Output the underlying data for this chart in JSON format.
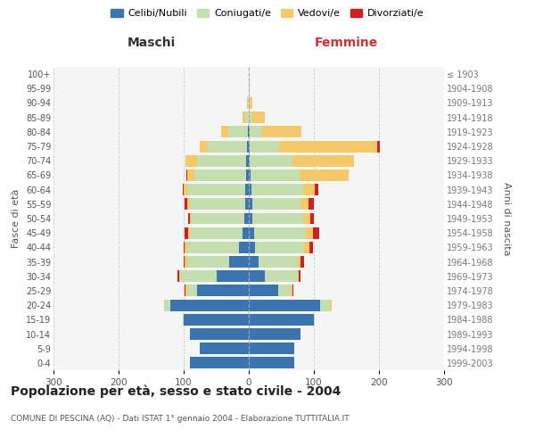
{
  "age_groups": [
    "0-4",
    "5-9",
    "10-14",
    "15-19",
    "20-24",
    "25-29",
    "30-34",
    "35-39",
    "40-44",
    "45-49",
    "50-54",
    "55-59",
    "60-64",
    "65-69",
    "70-74",
    "75-79",
    "80-84",
    "85-89",
    "90-94",
    "95-99",
    "100+"
  ],
  "birth_years": [
    "1999-2003",
    "1994-1998",
    "1989-1993",
    "1984-1988",
    "1979-1983",
    "1974-1978",
    "1969-1973",
    "1964-1968",
    "1959-1963",
    "1954-1958",
    "1949-1953",
    "1944-1948",
    "1939-1943",
    "1934-1938",
    "1929-1933",
    "1924-1928",
    "1919-1923",
    "1914-1918",
    "1909-1913",
    "1904-1908",
    "≤ 1903"
  ],
  "maschi": {
    "celibi": [
      90,
      75,
      90,
      100,
      120,
      80,
      50,
      30,
      15,
      10,
      7,
      6,
      5,
      4,
      4,
      3,
      2,
      0,
      0,
      0,
      0
    ],
    "coniugati": [
      0,
      0,
      0,
      2,
      10,
      15,
      55,
      65,
      80,
      80,
      80,
      85,
      90,
      80,
      75,
      60,
      30,
      5,
      2,
      0,
      0
    ],
    "vedovi": [
      0,
      0,
      0,
      0,
      0,
      2,
      2,
      3,
      3,
      3,
      3,
      3,
      5,
      10,
      18,
      12,
      10,
      5,
      1,
      0,
      0
    ],
    "divorziati": [
      0,
      0,
      0,
      0,
      0,
      1,
      2,
      2,
      2,
      5,
      3,
      5,
      2,
      2,
      0,
      0,
      0,
      0,
      0,
      0,
      0
    ]
  },
  "femmine": {
    "nubili": [
      70,
      70,
      80,
      100,
      110,
      45,
      25,
      15,
      10,
      8,
      5,
      5,
      4,
      3,
      2,
      2,
      1,
      0,
      0,
      0,
      0
    ],
    "coniugate": [
      0,
      0,
      0,
      2,
      15,
      20,
      50,
      60,
      75,
      80,
      80,
      75,
      80,
      75,
      65,
      45,
      20,
      4,
      1,
      0,
      0
    ],
    "vedove": [
      0,
      0,
      0,
      0,
      2,
      2,
      2,
      5,
      8,
      10,
      10,
      12,
      18,
      75,
      95,
      150,
      60,
      20,
      5,
      1,
      0
    ],
    "divorziate": [
      0,
      0,
      0,
      0,
      0,
      1,
      3,
      5,
      5,
      10,
      5,
      8,
      5,
      0,
      0,
      5,
      0,
      0,
      0,
      0,
      0
    ]
  },
  "xlim": 300,
  "colors": {
    "celibi": "#3A75B0",
    "coniugati": "#C5DEB0",
    "vedovi": "#F5C96A",
    "divorziati": "#CC2222"
  },
  "title": "Popolazione per età, sesso e stato civile - 2004",
  "subtitle": "COMUNE DI PESCINA (AQ) - Dati ISTAT 1° gennaio 2004 - Elaborazione TUTTITALIA.IT",
  "xlabel_left": "Maschi",
  "xlabel_right": "Femmine",
  "ylabel_left": "Fasce di età",
  "ylabel_right": "Anni di nascita",
  "legend_labels": [
    "Celibi/Nubili",
    "Coniugati/e",
    "Vedovi/e",
    "Divorziati/e"
  ],
  "bg_color": "#FFFFFF",
  "grid_color": "#CCCCCC",
  "xticks": [
    300,
    200,
    100,
    0,
    100,
    200,
    300
  ]
}
